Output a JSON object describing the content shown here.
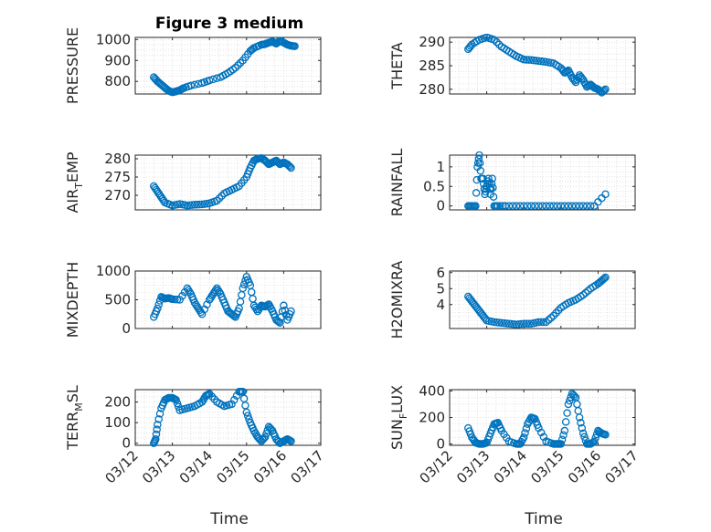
{
  "title": "Figure 3 medium",
  "xlabel": "Time",
  "xticks": [
    "03/12",
    "03/13",
    "03/14",
    "03/15",
    "03/16",
    "03/17"
  ],
  "marker_color": "#0072BD",
  "chart_data": [
    {
      "type": "scatter",
      "ylabel": "PRESSURE",
      "ylim": [
        740,
        1010
      ],
      "yticks": [
        800,
        900,
        1000
      ],
      "grid": "on",
      "x": [
        0.5,
        0.6,
        0.7,
        0.8,
        0.9,
        1.0,
        1.1,
        1.2,
        1.3,
        1.5,
        1.8,
        2.0,
        2.3,
        2.5,
        2.7,
        2.9,
        3.1,
        3.2,
        3.4,
        3.5,
        3.6,
        3.7,
        3.8,
        3.9,
        4.0,
        4.1,
        4.2,
        4.3
      ],
      "y": [
        820,
        800,
        785,
        770,
        755,
        748,
        752,
        758,
        768,
        780,
        792,
        805,
        820,
        840,
        865,
        900,
        945,
        960,
        975,
        978,
        985,
        990,
        980,
        995,
        985,
        975,
        970,
        968
      ]
    },
    {
      "type": "scatter",
      "ylabel": "THETA",
      "ylim": [
        279,
        291
      ],
      "yticks": [
        280,
        285,
        290
      ],
      "grid": "on",
      "x": [
        0.5,
        0.6,
        0.8,
        1.0,
        1.2,
        1.4,
        1.6,
        1.8,
        2.0,
        2.2,
        2.4,
        2.6,
        2.8,
        3.0,
        3.1,
        3.2,
        3.3,
        3.4,
        3.5,
        3.6,
        3.7,
        3.8,
        3.9,
        4.0,
        4.1,
        4.2
      ],
      "y": [
        288.5,
        289.5,
        290.5,
        291,
        290.5,
        289,
        288,
        287,
        286.3,
        286.2,
        286,
        285.8,
        285.5,
        284.5,
        283.5,
        284,
        282.5,
        281.5,
        283,
        282,
        280.5,
        281,
        280.3,
        280,
        279.3,
        280
      ]
    },
    {
      "type": "scatter",
      "ylabel": "AIR_TEMP",
      "ylim": [
        266,
        281
      ],
      "yticks": [
        270,
        275,
        280
      ],
      "grid": "on",
      "x": [
        0.5,
        0.6,
        0.7,
        0.8,
        1.0,
        1.2,
        1.4,
        1.6,
        1.8,
        2.0,
        2.2,
        2.4,
        2.6,
        2.8,
        3.0,
        3.1,
        3.2,
        3.3,
        3.4,
        3.5,
        3.6,
        3.7,
        3.8,
        3.9,
        4.0,
        4.1,
        4.2
      ],
      "y": [
        272.5,
        271,
        269.5,
        268,
        267.2,
        267.6,
        267.2,
        267.4,
        267.5,
        267.8,
        268.5,
        270.5,
        271.5,
        272.5,
        275,
        277.5,
        279.5,
        280,
        280.2,
        279.5,
        278.5,
        279,
        279.5,
        278.5,
        279,
        278.5,
        277.5
      ]
    },
    {
      "type": "scatter",
      "ylabel": "RAINFALL",
      "ylim": [
        -0.1,
        1.3
      ],
      "yticks": [
        0,
        0.5,
        1
      ],
      "grid": "on",
      "x": [
        0.5,
        0.6,
        0.7,
        0.75,
        0.8,
        0.85,
        0.9,
        0.95,
        1.0,
        1.05,
        1.1,
        1.15,
        1.2,
        1.3,
        1.5,
        1.8,
        2.1,
        2.4,
        2.7,
        3.0,
        3.3,
        3.6,
        3.9,
        4.2
      ],
      "y": [
        0,
        0,
        0,
        1,
        1.3,
        0.7,
        0.7,
        0.3,
        0.5,
        0.7,
        0.3,
        0.7,
        0,
        0,
        0,
        0,
        0,
        0,
        0,
        0,
        0,
        0,
        0,
        0.3
      ]
    },
    {
      "type": "scatter",
      "ylabel": "MIXDEPTH",
      "ylim": [
        0,
        1000
      ],
      "yticks": [
        0,
        500,
        1000
      ],
      "grid": "on",
      "x": [
        0.5,
        0.6,
        0.7,
        0.8,
        0.9,
        1.0,
        1.2,
        1.4,
        1.5,
        1.6,
        1.7,
        1.8,
        2.0,
        2.1,
        2.2,
        2.3,
        2.4,
        2.5,
        2.6,
        2.7,
        2.8,
        2.9,
        3.0,
        3.1,
        3.2,
        3.3,
        3.4,
        3.5,
        3.6,
        3.7,
        3.8,
        3.9,
        4.0,
        4.1,
        4.2
      ],
      "y": [
        200,
        350,
        550,
        520,
        530,
        510,
        500,
        700,
        600,
        450,
        350,
        250,
        500,
        600,
        700,
        600,
        450,
        300,
        250,
        200,
        350,
        700,
        900,
        750,
        400,
        300,
        400,
        380,
        420,
        300,
        150,
        100,
        400,
        150,
        300
      ]
    },
    {
      "type": "scatter",
      "ylabel": "H2OMIXRA",
      "ylim": [
        2.5,
        6.1
      ],
      "yticks": [
        4,
        5,
        6
      ],
      "grid": "on",
      "x": [
        0.5,
        0.6,
        0.7,
        0.8,
        0.9,
        1.0,
        1.2,
        1.4,
        1.6,
        1.8,
        2.0,
        2.2,
        2.4,
        2.6,
        2.8,
        3.0,
        3.2,
        3.4,
        3.6,
        3.8,
        4.0,
        4.1,
        4.2
      ],
      "y": [
        4.5,
        4.2,
        3.9,
        3.6,
        3.3,
        3.0,
        2.9,
        2.85,
        2.8,
        2.75,
        2.8,
        2.8,
        2.9,
        2.9,
        3.3,
        3.8,
        4.1,
        4.3,
        4.6,
        5.0,
        5.3,
        5.5,
        5.7
      ]
    },
    {
      "type": "scatter",
      "ylabel": "TERR_MSL",
      "ylim": [
        -10,
        260
      ],
      "yticks": [
        0,
        100,
        200
      ],
      "grid": "on",
      "x": [
        0.5,
        0.55,
        0.6,
        0.7,
        0.8,
        0.9,
        1.0,
        1.1,
        1.2,
        1.4,
        1.6,
        1.8,
        1.9,
        2.0,
        2.2,
        2.4,
        2.6,
        2.8,
        2.9,
        3.0,
        3.1,
        3.2,
        3.3,
        3.4,
        3.5,
        3.6,
        3.7,
        3.8,
        3.9,
        4.0,
        4.1,
        4.2
      ],
      "y": [
        0,
        20,
        90,
        170,
        210,
        220,
        220,
        210,
        160,
        170,
        180,
        200,
        230,
        240,
        200,
        180,
        190,
        250,
        250,
        150,
        100,
        60,
        30,
        10,
        30,
        80,
        60,
        20,
        0,
        10,
        20,
        10
      ]
    },
    {
      "type": "scatter",
      "ylabel": "SUN_FLUX",
      "ylim": [
        -10,
        410
      ],
      "yticks": [
        0,
        200,
        400
      ],
      "grid": "on",
      "x": [
        0.5,
        0.6,
        0.7,
        0.8,
        0.9,
        1.0,
        1.1,
        1.2,
        1.3,
        1.4,
        1.6,
        1.8,
        1.9,
        2.0,
        2.1,
        2.2,
        2.3,
        2.4,
        2.6,
        2.8,
        2.9,
        3.0,
        3.1,
        3.2,
        3.3,
        3.4,
        3.5,
        3.6,
        3.7,
        3.8,
        3.9,
        4.0,
        4.1,
        4.2
      ],
      "y": [
        120,
        50,
        10,
        0,
        0,
        10,
        80,
        150,
        160,
        100,
        20,
        0,
        0,
        50,
        150,
        200,
        190,
        120,
        20,
        0,
        0,
        0,
        100,
        300,
        380,
        350,
        200,
        80,
        0,
        0,
        20,
        100,
        80,
        70
      ]
    }
  ]
}
